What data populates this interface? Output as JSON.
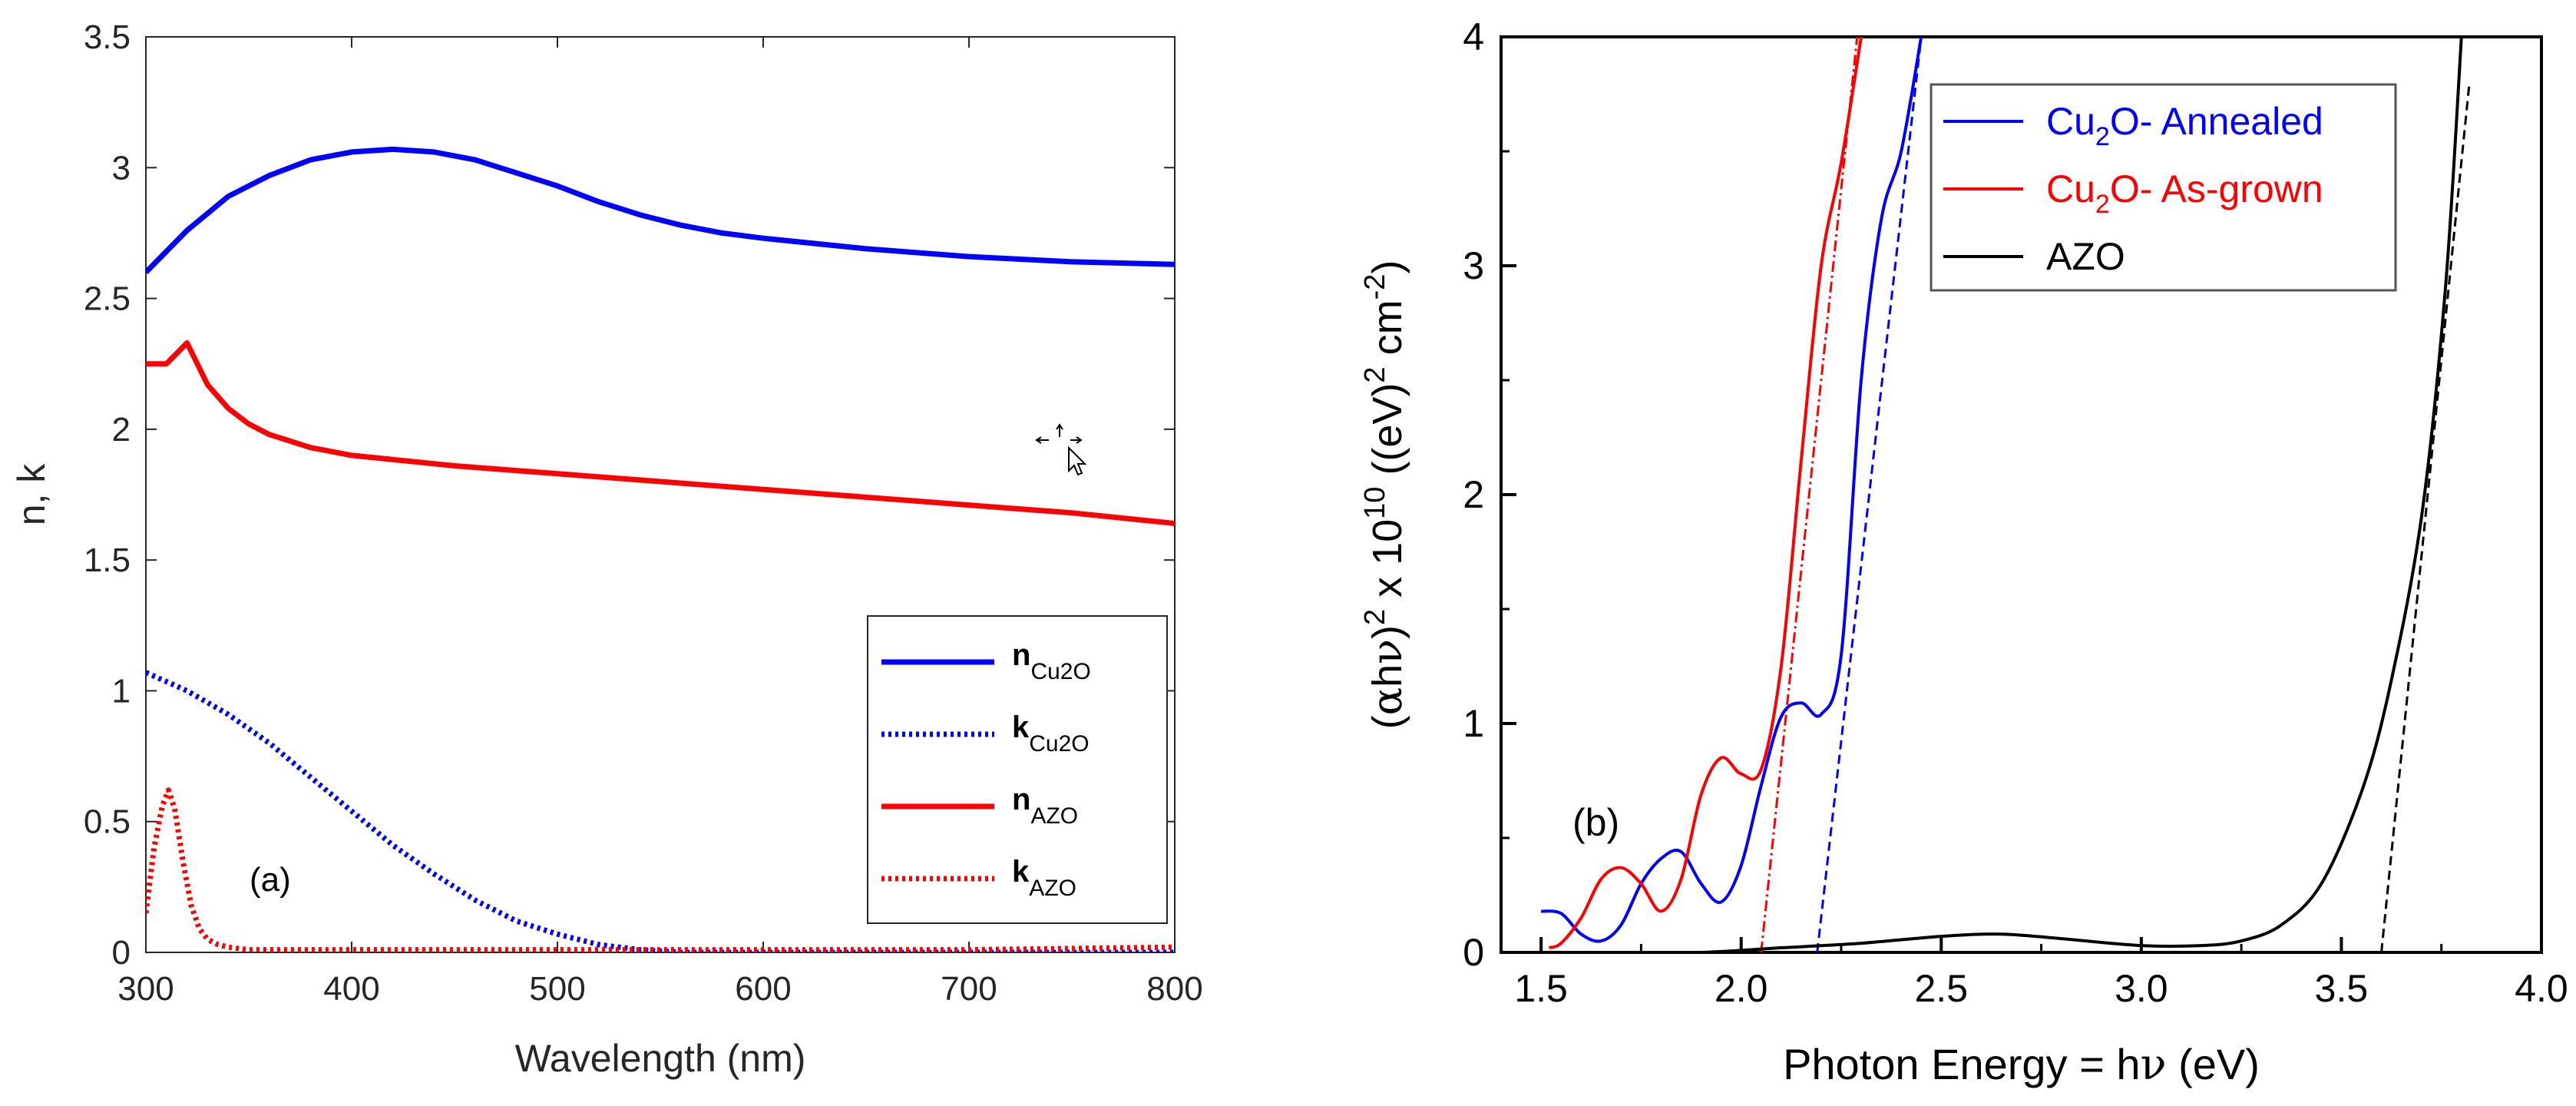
{
  "chart_data": [
    {
      "type": "line",
      "panel_label": "(a)",
      "xlabel": "Wavelength (nm)",
      "ylabel": "n, k",
      "xlim": [
        300,
        800
      ],
      "ylim": [
        0,
        3.5
      ],
      "x_ticks": [
        "300",
        "400",
        "500",
        "600",
        "700",
        "800"
      ],
      "y_ticks": [
        "0",
        "0.5",
        "1",
        "1.5",
        "2",
        "2.5",
        "3",
        "3.5"
      ],
      "legend_position": "bottom-right",
      "series": [
        {
          "key": "n_cu2o",
          "name": "n Cu2O",
          "legend_main": "n",
          "legend_sub": "Cu2O",
          "color": "#0000ff",
          "style": "solid",
          "x": [
            300,
            320,
            340,
            360,
            380,
            400,
            420,
            440,
            460,
            480,
            500,
            520,
            540,
            560,
            580,
            600,
            650,
            700,
            750,
            800
          ],
          "y": [
            2.6,
            2.76,
            2.89,
            2.97,
            3.03,
            3.06,
            3.07,
            3.06,
            3.03,
            2.98,
            2.93,
            2.87,
            2.82,
            2.78,
            2.75,
            2.73,
            2.69,
            2.66,
            2.64,
            2.63
          ]
        },
        {
          "key": "k_cu2o",
          "name": "k Cu2O",
          "legend_main": "k",
          "legend_sub": "Cu2O",
          "color": "#0000ff",
          "style": "dotted",
          "x": [
            300,
            320,
            340,
            360,
            380,
            400,
            420,
            440,
            460,
            480,
            500,
            520,
            540,
            560,
            600,
            700,
            800
          ],
          "y": [
            1.07,
            1.0,
            0.91,
            0.8,
            0.67,
            0.54,
            0.41,
            0.3,
            0.2,
            0.12,
            0.07,
            0.03,
            0.01,
            0.0,
            0.0,
            0.0,
            0.0
          ]
        },
        {
          "key": "n_azo",
          "name": "n AZO",
          "legend_main": "n",
          "legend_sub": "AZO",
          "color": "#ff0000",
          "style": "solid",
          "x": [
            300,
            310,
            320,
            330,
            340,
            350,
            360,
            380,
            400,
            450,
            500,
            550,
            600,
            650,
            700,
            750,
            800
          ],
          "y": [
            2.25,
            2.25,
            2.33,
            2.17,
            2.08,
            2.02,
            1.98,
            1.93,
            1.9,
            1.86,
            1.83,
            1.8,
            1.77,
            1.74,
            1.71,
            1.68,
            1.64
          ]
        },
        {
          "key": "k_azo",
          "name": "k AZO",
          "legend_main": "k",
          "legend_sub": "AZO",
          "color": "#ff0000",
          "style": "dotted",
          "x": [
            300,
            304,
            308,
            311,
            314,
            318,
            322,
            326,
            330,
            335,
            340,
            350,
            400,
            500,
            600,
            700,
            800
          ],
          "y": [
            0.15,
            0.4,
            0.56,
            0.62,
            0.55,
            0.35,
            0.18,
            0.09,
            0.05,
            0.03,
            0.02,
            0.01,
            0.01,
            0.01,
            0.01,
            0.01,
            0.02
          ]
        }
      ]
    },
    {
      "type": "line",
      "panel_label": "(b)",
      "xlabel_parts": [
        "Photon Energy = h",
        "ν",
        " (eV)"
      ],
      "ylabel_parts": [
        "(",
        "α",
        "h",
        "ν",
        ")",
        "2",
        " x 10",
        "10",
        " ((eV)",
        "2",
        " cm",
        "-2",
        ")"
      ],
      "xlim": [
        1.4,
        4.0
      ],
      "ylim": [
        0,
        4
      ],
      "x_ticks": [
        "1.5",
        "2.0",
        "2.5",
        "3.0",
        "3.5",
        "4.0"
      ],
      "y_ticks": [
        "0",
        "1",
        "2",
        "3",
        "4"
      ],
      "legend_position": "top-right",
      "series": [
        {
          "key": "cu2o_annealed",
          "legend_main": "Cu",
          "legend_sub": "2",
          "legend_rest": "O- Annealed",
          "color": "#0000ff",
          "style": "solid",
          "x": [
            1.5,
            1.55,
            1.6,
            1.65,
            1.7,
            1.75,
            1.8,
            1.85,
            1.9,
            1.95,
            2.0,
            2.05,
            2.1,
            2.15,
            2.2,
            2.25,
            2.3,
            2.35,
            2.4,
            2.45
          ],
          "y": [
            0.18,
            0.17,
            0.08,
            0.05,
            0.12,
            0.3,
            0.41,
            0.44,
            0.3,
            0.22,
            0.38,
            0.73,
            1.03,
            1.09,
            1.04,
            1.3,
            2.5,
            3.2,
            3.5,
            4.0
          ]
        },
        {
          "key": "cu2o_asgrown",
          "legend_main": "Cu",
          "legend_sub": "2",
          "legend_rest": "O- As-grown",
          "color": "#ff0000",
          "style": "solid",
          "x": [
            1.52,
            1.55,
            1.6,
            1.65,
            1.7,
            1.75,
            1.8,
            1.85,
            1.9,
            1.95,
            2.0,
            2.05,
            2.1,
            2.15,
            2.2,
            2.25,
            2.3
          ],
          "y": [
            0.02,
            0.04,
            0.15,
            0.32,
            0.37,
            0.3,
            0.18,
            0.32,
            0.69,
            0.85,
            0.78,
            0.8,
            1.25,
            2.15,
            3.0,
            3.45,
            4.0
          ]
        },
        {
          "key": "azo",
          "legend_main": "AZO",
          "legend_sub": "",
          "legend_rest": "",
          "color": "#000000",
          "style": "solid",
          "x": [
            1.5,
            1.7,
            1.9,
            2.1,
            2.3,
            2.5,
            2.65,
            2.8,
            3.0,
            3.15,
            3.25,
            3.35,
            3.45,
            3.55,
            3.62,
            3.7,
            3.76,
            3.8
          ],
          "y": [
            0.0,
            0.0,
            0.0,
            0.02,
            0.04,
            0.07,
            0.08,
            0.06,
            0.03,
            0.03,
            0.05,
            0.12,
            0.3,
            0.7,
            1.15,
            1.9,
            2.9,
            4.0
          ]
        }
      ],
      "fit_lines": [
        {
          "key": "fit_annealed",
          "color": "#0000ff",
          "style": "dashed",
          "x": [
            2.19,
            2.45
          ],
          "y": [
            0.0,
            4.0
          ]
        },
        {
          "key": "fit_asgrown",
          "color": "#ff0000",
          "style": "dashdot",
          "x": [
            2.05,
            2.29
          ],
          "y": [
            0.0,
            4.0
          ]
        },
        {
          "key": "fit_azo",
          "color": "#000000",
          "style": "dashed",
          "x": [
            3.6,
            3.82
          ],
          "y": [
            0.0,
            3.8
          ]
        }
      ]
    }
  ]
}
